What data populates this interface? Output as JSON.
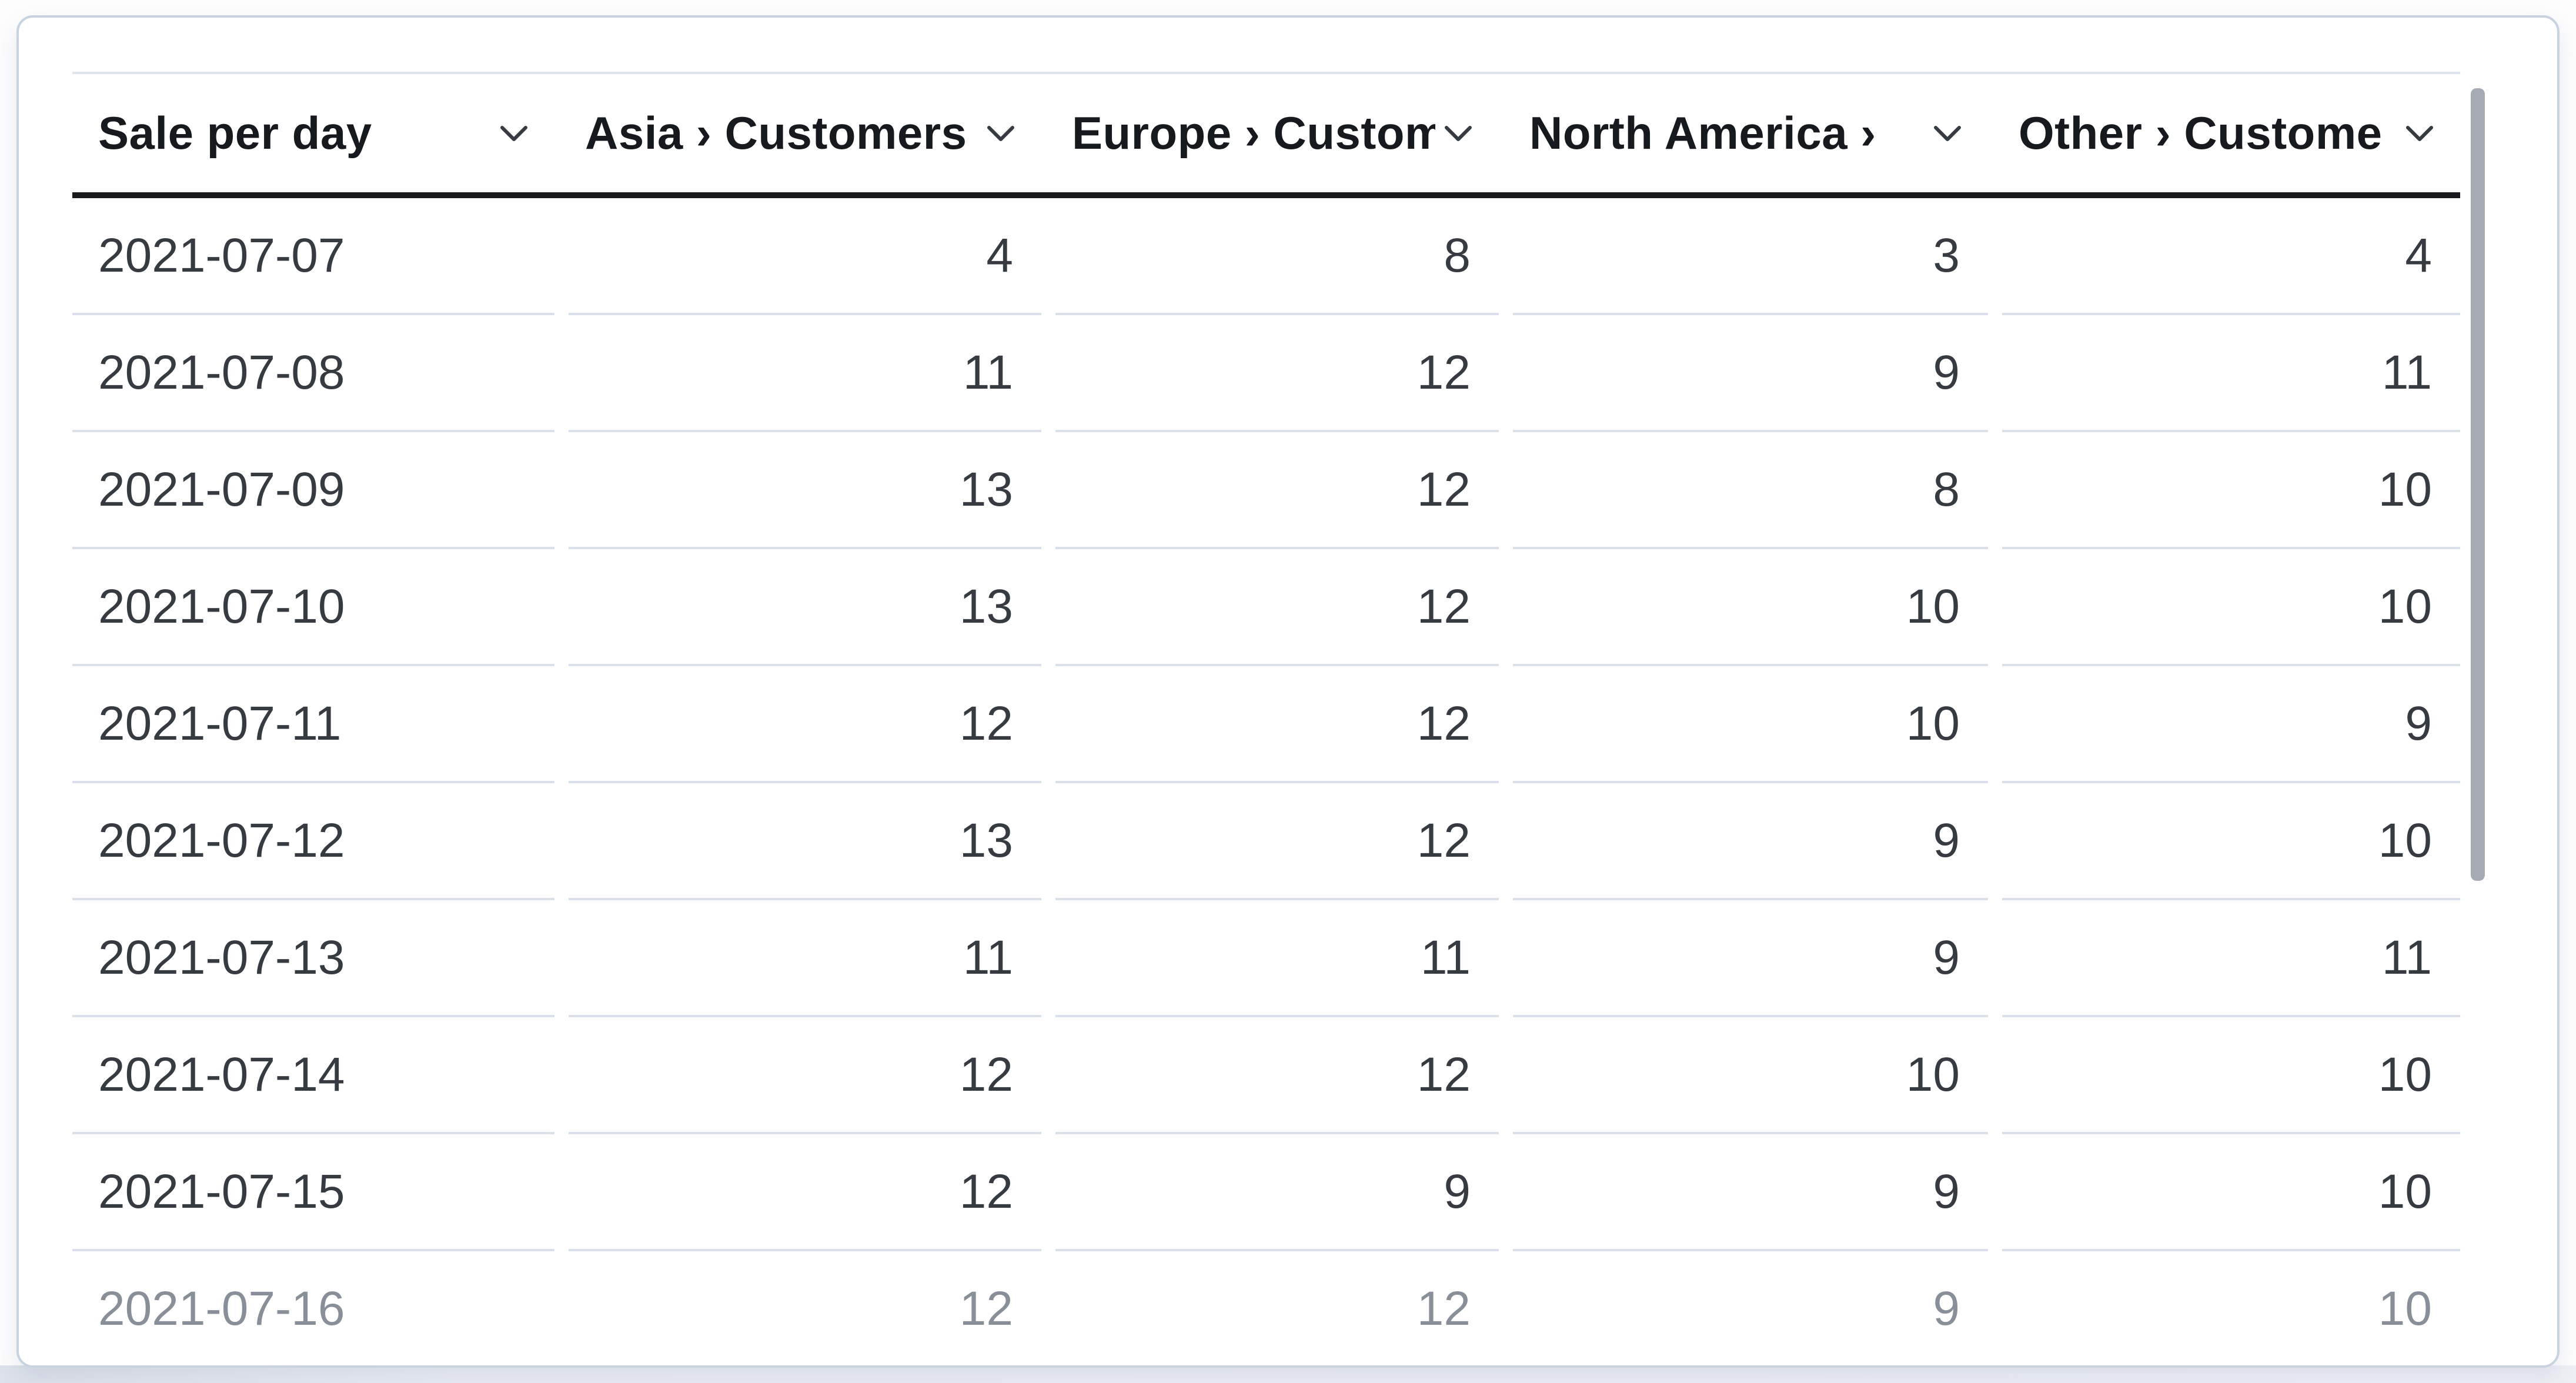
{
  "table": {
    "title": "Sale per day",
    "columns": [
      {
        "id": "date",
        "label": "Sale per day",
        "align": "left"
      },
      {
        "id": "asia",
        "label": "Asia › Customers",
        "align": "right"
      },
      {
        "id": "europe",
        "label": "Europe › Custom",
        "align": "right"
      },
      {
        "id": "north-america",
        "label": "North America › ",
        "align": "right"
      },
      {
        "id": "other",
        "label": "Other › Custome",
        "align": "right"
      }
    ],
    "rows": [
      {
        "date": "2021-07-07",
        "values": [
          4,
          8,
          3,
          4
        ]
      },
      {
        "date": "2021-07-08",
        "values": [
          11,
          12,
          9,
          11
        ]
      },
      {
        "date": "2021-07-09",
        "values": [
          13,
          12,
          8,
          10
        ]
      },
      {
        "date": "2021-07-10",
        "values": [
          13,
          12,
          10,
          10
        ]
      },
      {
        "date": "2021-07-11",
        "values": [
          12,
          12,
          10,
          9
        ]
      },
      {
        "date": "2021-07-12",
        "values": [
          13,
          12,
          9,
          10
        ]
      },
      {
        "date": "2021-07-13",
        "values": [
          11,
          11,
          9,
          11
        ]
      },
      {
        "date": "2021-07-14",
        "values": [
          12,
          12,
          10,
          10
        ]
      },
      {
        "date": "2021-07-15",
        "values": [
          12,
          9,
          9,
          10
        ]
      },
      {
        "date": "2021-07-16",
        "values": [
          12,
          12,
          9,
          10
        ]
      }
    ]
  },
  "icons": {
    "column_dropdown": "chevron-down"
  },
  "colors": {
    "header_text": "#16191e",
    "body_text": "#363b42",
    "header_underline": "#17191d",
    "row_divider": "#d9e0ea",
    "card_border": "#c9d3e0",
    "scrollbar_thumb": "#a6aab1",
    "page_band": "#eceff4"
  },
  "scrollbar": {
    "orientation": "vertical",
    "state": "scrolled-to-top"
  }
}
